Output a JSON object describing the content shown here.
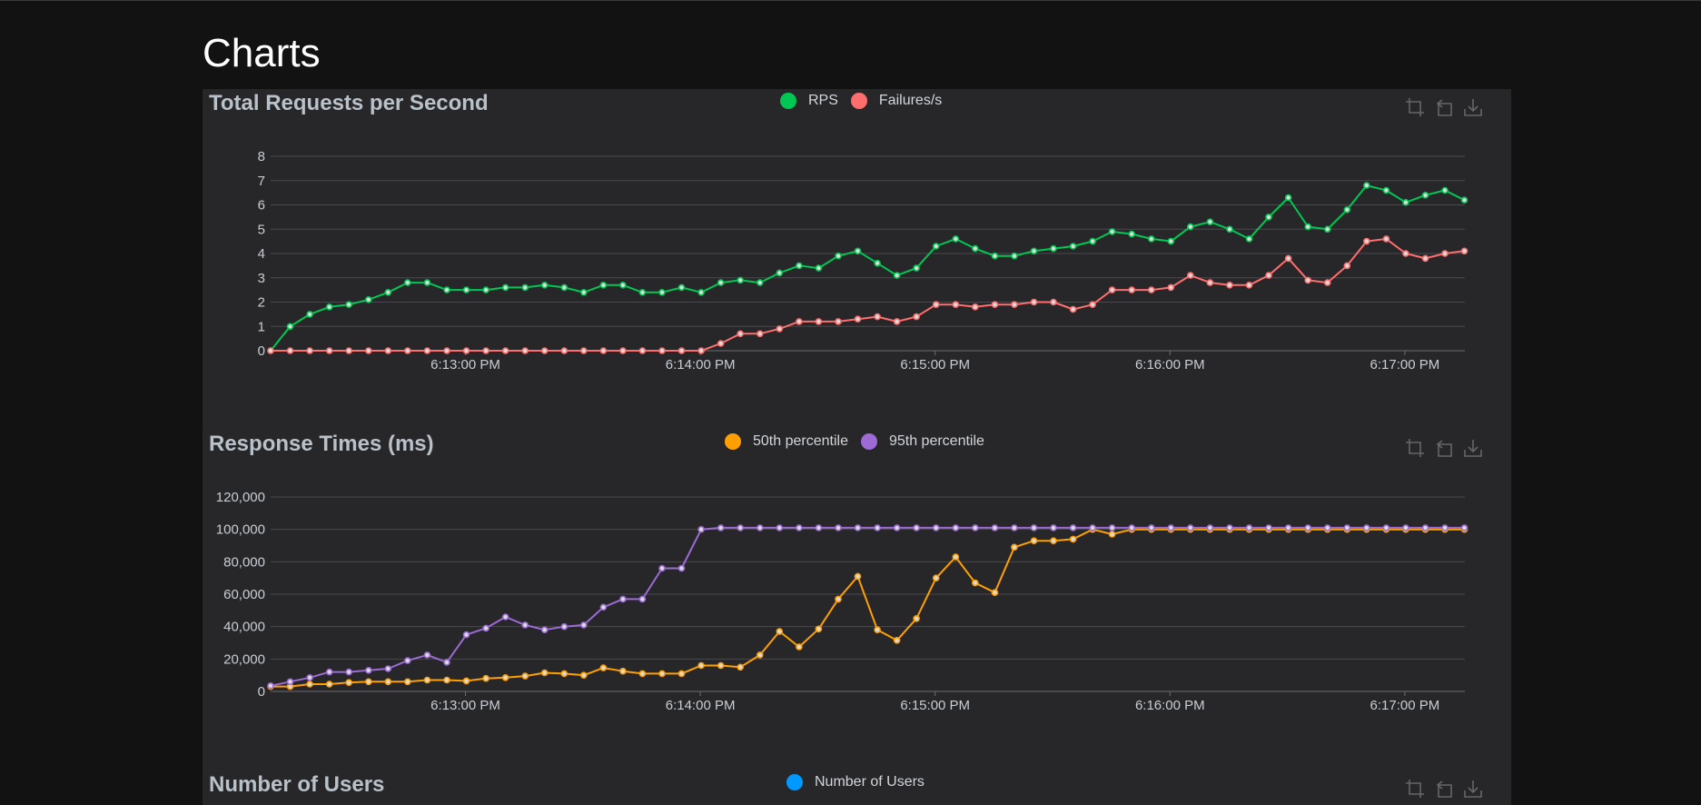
{
  "page": {
    "title": "Charts"
  },
  "x_ticks": [
    "6:13:00 PM",
    "6:14:00 PM",
    "6:15:00 PM",
    "6:16:00 PM",
    "6:17:00 PM"
  ],
  "colors": {
    "rps": "#00c853",
    "failures": "#ff6d6d",
    "p50": "#ffa000",
    "p95": "#9c6bd6",
    "users": "#0099ff",
    "grid": "#4a4a4e",
    "axis_text": "#c7cdd3"
  },
  "toolbox": [
    "zoom-icon",
    "zoom-reset-icon",
    "download-icon"
  ],
  "charts": [
    {
      "title": "Total Requests per Second",
      "legend": [
        {
          "name": "RPS",
          "color": "#00c853"
        },
        {
          "name": "Failures/s",
          "color": "#ff6d6d"
        }
      ]
    },
    {
      "title": "Response Times (ms)",
      "legend": [
        {
          "name": "50th percentile",
          "color": "#ffa000"
        },
        {
          "name": "95th percentile",
          "color": "#9c6bd6"
        }
      ]
    },
    {
      "title": "Number of Users",
      "legend": [
        {
          "name": "Number of Users",
          "color": "#0099ff"
        }
      ]
    }
  ],
  "chart_data": [
    {
      "type": "line",
      "title": "Total Requests per Second",
      "xlabel": "",
      "ylabel": "",
      "ylim": [
        0,
        8
      ],
      "y_ticks": [
        "0",
        "1",
        "2",
        "3",
        "4",
        "5",
        "6",
        "7",
        "8"
      ],
      "x_ticks": [
        "6:13:00 PM",
        "6:14:00 PM",
        "6:15:00 PM",
        "6:16:00 PM",
        "6:17:00 PM"
      ],
      "x_start": "6:12:15 PM",
      "x_step_seconds": 5,
      "grid": true,
      "legend": "top-center",
      "series": [
        {
          "name": "RPS",
          "color": "#00c853",
          "values": [
            0,
            1.0,
            1.5,
            1.8,
            1.9,
            2.1,
            2.4,
            2.8,
            2.8,
            2.5,
            2.5,
            2.5,
            2.6,
            2.6,
            2.7,
            2.6,
            2.4,
            2.7,
            2.7,
            2.4,
            2.4,
            2.6,
            2.4,
            2.8,
            2.9,
            2.8,
            3.2,
            3.5,
            3.4,
            3.9,
            4.1,
            3.6,
            3.1,
            3.4,
            4.3,
            4.6,
            4.2,
            3.9,
            3.9,
            4.1,
            4.2,
            4.3,
            4.5,
            4.9,
            4.8,
            4.6,
            4.5,
            5.1,
            5.3,
            5.0,
            4.6,
            5.5,
            6.3,
            5.1,
            5.0,
            5.8,
            6.8,
            6.6,
            6.1,
            6.4,
            6.6,
            6.2
          ]
        },
        {
          "name": "Failures/s",
          "color": "#ff6d6d",
          "values": [
            0,
            0,
            0,
            0,
            0,
            0,
            0,
            0,
            0,
            0,
            0,
            0,
            0,
            0,
            0,
            0,
            0,
            0,
            0,
            0,
            0,
            0,
            0,
            0.3,
            0.7,
            0.7,
            0.9,
            1.2,
            1.2,
            1.2,
            1.3,
            1.4,
            1.2,
            1.4,
            1.9,
            1.9,
            1.8,
            1.9,
            1.9,
            2.0,
            2.0,
            1.7,
            1.9,
            2.5,
            2.5,
            2.5,
            2.6,
            3.1,
            2.8,
            2.7,
            2.7,
            3.1,
            3.8,
            2.9,
            2.8,
            3.5,
            4.5,
            4.6,
            4.0,
            3.8,
            4.0,
            4.1
          ]
        }
      ]
    },
    {
      "type": "line",
      "title": "Response Times (ms)",
      "xlabel": "",
      "ylabel": "",
      "ylim": [
        0,
        120000
      ],
      "y_ticks": [
        "0",
        "20,000",
        "40,000",
        "60,000",
        "80,000",
        "100,000",
        "120,000"
      ],
      "x_ticks": [
        "6:13:00 PM",
        "6:14:00 PM",
        "6:15:00 PM",
        "6:16:00 PM",
        "6:17:00 PM"
      ],
      "x_start": "6:12:15 PM",
      "x_step_seconds": 5,
      "grid": true,
      "legend": "top-center",
      "series": [
        {
          "name": "50th percentile",
          "color": "#ffa000",
          "values": [
            3000,
            3000,
            4500,
            4500,
            5500,
            6000,
            6000,
            6000,
            7000,
            7000,
            6500,
            8000,
            8500,
            9500,
            11500,
            11000,
            10000,
            14500,
            12500,
            11000,
            11000,
            11000,
            16000,
            16000,
            15000,
            22500,
            37000,
            27500,
            38500,
            57000,
            71000,
            38000,
            31500,
            45000,
            70000,
            83000,
            67000,
            61000,
            89000,
            93000,
            93000,
            94000,
            100000,
            97000,
            100000,
            100000,
            100000,
            100000,
            100000,
            100000,
            100000,
            100000,
            100000,
            100000,
            100000,
            100000,
            100000,
            100000,
            100000,
            100000,
            100000,
            100000
          ]
        },
        {
          "name": "95th percentile",
          "color": "#9c6bd6",
          "values": [
            3500,
            6000,
            8500,
            12000,
            12000,
            13000,
            14000,
            19000,
            22500,
            18000,
            35000,
            39000,
            46000,
            41000,
            38000,
            40000,
            41000,
            52000,
            57000,
            57000,
            76000,
            76000,
            100000,
            101000,
            101000,
            101000,
            101000,
            101000,
            101000,
            101000,
            101000,
            101000,
            101000,
            101000,
            101000,
            101000,
            101000,
            101000,
            101000,
            101000,
            101000,
            101000,
            101000,
            101000,
            101000,
            101000,
            101000,
            101000,
            101000,
            101000,
            101000,
            101000,
            101000,
            101000,
            101000,
            101000,
            101000,
            101000,
            101000,
            101000,
            101000,
            101000
          ]
        }
      ]
    },
    {
      "type": "line",
      "title": "Number of Users",
      "legend": "top-center",
      "series": [
        {
          "name": "Number of Users",
          "color": "#0099ff",
          "values": []
        }
      ]
    }
  ]
}
